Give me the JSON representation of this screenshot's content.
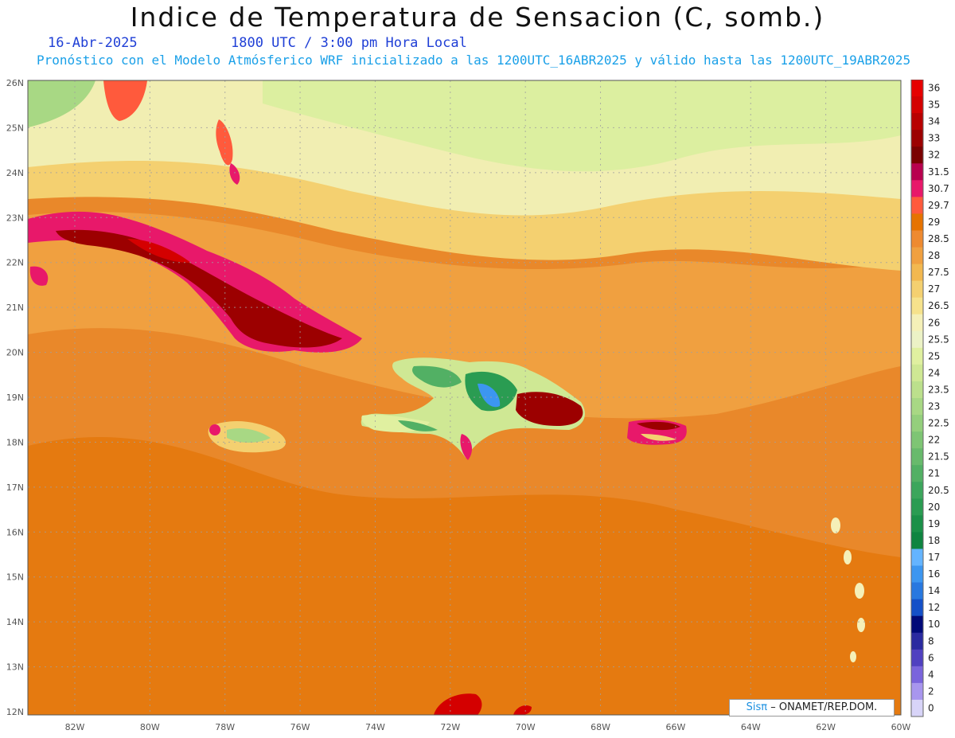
{
  "title": "Indice de Temperatura de Sensacion (C, somb.)",
  "date": "16-Abr-2025",
  "time": "1800 UTC / 3:00 pm Hora Local",
  "subtitle": "Pronóstico con el Modelo Atmósferico WRF inicializado a las 1200UTC_16ABR2025 y válido hasta las  1200UTC_19ABR2025",
  "credit": {
    "logo_text": "Sisπ",
    "text": "– ONAMET/REP.DOM."
  },
  "axes": {
    "lon_labels": [
      "82W",
      "80W",
      "78W",
      "76W",
      "74W",
      "72W",
      "70W",
      "68W",
      "66W",
      "64W",
      "62W",
      "60W"
    ],
    "lat_labels": [
      "26N",
      "25N",
      "24N",
      "23N",
      "22N",
      "21N",
      "20N",
      "19N",
      "18N",
      "17N",
      "16N",
      "15N",
      "14N",
      "13N",
      "12N"
    ]
  },
  "colorbar": [
    {
      "label": "36",
      "color": "#e60000"
    },
    {
      "label": "35",
      "color": "#d40000"
    },
    {
      "label": "34",
      "color": "#b80000"
    },
    {
      "label": "33",
      "color": "#9c0000"
    },
    {
      "label": "32",
      "color": "#7a0000"
    },
    {
      "label": "31.5",
      "color": "#b8004e"
    },
    {
      "label": "30.7",
      "color": "#e8186a"
    },
    {
      "label": "29.7",
      "color": "#ff5a3c"
    },
    {
      "label": "29",
      "color": "#e67300"
    },
    {
      "label": "28.5",
      "color": "#ee8a30"
    },
    {
      "label": "28",
      "color": "#f0a040"
    },
    {
      "label": "27.5",
      "color": "#f2b850"
    },
    {
      "label": "27",
      "color": "#f4d070"
    },
    {
      "label": "26.5",
      "color": "#f6e28c"
    },
    {
      "label": "26",
      "color": "#f5f0b8"
    },
    {
      "label": "25.5",
      "color": "#ecf2c6"
    },
    {
      "label": "25",
      "color": "#e0f0a0"
    },
    {
      "label": "24",
      "color": "#cfe894"
    },
    {
      "label": "23.5",
      "color": "#bce08c"
    },
    {
      "label": "23",
      "color": "#a8d884"
    },
    {
      "label": "22.5",
      "color": "#94cf7c"
    },
    {
      "label": "22",
      "color": "#7ec574"
    },
    {
      "label": "21.5",
      "color": "#68ba6c"
    },
    {
      "label": "21",
      "color": "#52b064"
    },
    {
      "label": "20.5",
      "color": "#3ca65c"
    },
    {
      "label": "20",
      "color": "#2a9c52"
    },
    {
      "label": "19",
      "color": "#1a9048"
    },
    {
      "label": "18",
      "color": "#0e8440"
    },
    {
      "label": "17",
      "color": "#64b4ff"
    },
    {
      "label": "16",
      "color": "#3c96f0"
    },
    {
      "label": "14",
      "color": "#2878e0"
    },
    {
      "label": "12",
      "color": "#1450c8"
    },
    {
      "label": "10",
      "color": "#000a78"
    },
    {
      "label": "8",
      "color": "#2a2aa0"
    },
    {
      "label": "6",
      "color": "#5040c0"
    },
    {
      "label": "4",
      "color": "#7a64dc"
    },
    {
      "label": "2",
      "color": "#a896ee"
    },
    {
      "label": "0",
      "color": "#d8d4f8"
    }
  ]
}
